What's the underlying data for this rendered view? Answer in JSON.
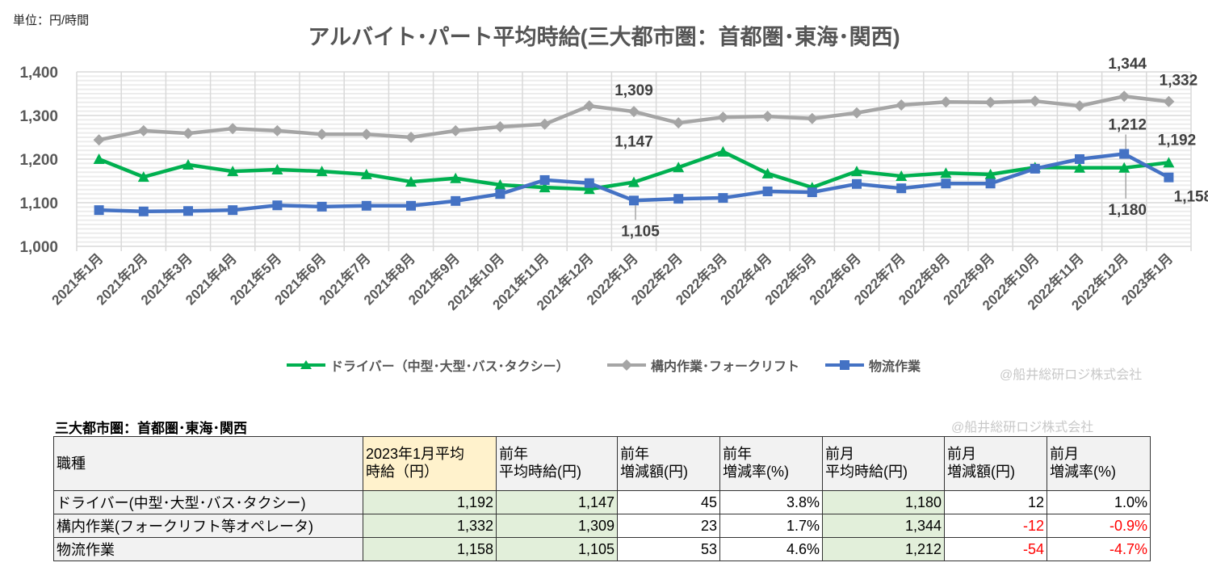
{
  "chart_data": {
    "type": "line",
    "title": "アルバイト･パート平均時給(三大都市圏：首都圏･東海･関西)",
    "unit_label": "単位：円/時間",
    "ylim": [
      1000,
      1400
    ],
    "yticks": [
      "1,000",
      "1,100",
      "1,200",
      "1,300",
      "1,400"
    ],
    "grid": true,
    "legend_position": "bottom",
    "categories": [
      "2021年1月",
      "2021年2月",
      "2021年3月",
      "2021年4月",
      "2021年5月",
      "2021年6月",
      "2021年7月",
      "2021年8月",
      "2021年9月",
      "2021年10月",
      "2021年11月",
      "2021年12月",
      "2022年1月",
      "2022年2月",
      "2022年3月",
      "2022年4月",
      "2022年5月",
      "2022年6月",
      "2022年7月",
      "2022年8月",
      "2022年9月",
      "2022年10月",
      "2022年11月",
      "2022年12月",
      "2023年1月"
    ],
    "series": [
      {
        "name": "ドライバー（中型･大型･バス･タクシー）",
        "color": "#00b050",
        "marker": "triangle",
        "values": [
          1200,
          1159,
          1187,
          1172,
          1176,
          1172,
          1165,
          1148,
          1156,
          1141,
          1135,
          1131,
          1147,
          1181,
          1217,
          1167,
          1135,
          1172,
          1161,
          1168,
          1165,
          1181,
          1180,
          1180,
          1192
        ],
        "labels": {
          "12": "1,147",
          "23": "1,180",
          "24": "1,192"
        }
      },
      {
        "name": "構内作業･フォークリフト",
        "color": "#a5a5a5",
        "marker": "diamond",
        "values": [
          1244,
          1265,
          1259,
          1270,
          1265,
          1257,
          1257,
          1250,
          1265,
          1274,
          1280,
          1322,
          1309,
          1283,
          1296,
          1298,
          1293,
          1306,
          1324,
          1331,
          1330,
          1333,
          1322,
          1344,
          1332
        ],
        "labels": {
          "12": "1,309",
          "23": "1,344",
          "24": "1,332"
        }
      },
      {
        "name": "物流作業",
        "color": "#4472c4",
        "marker": "square",
        "values": [
          1083,
          1080,
          1081,
          1083,
          1094,
          1091,
          1093,
          1093,
          1104,
          1120,
          1152,
          1145,
          1105,
          1109,
          1111,
          1126,
          1124,
          1143,
          1133,
          1144,
          1144,
          1178,
          1200,
          1212,
          1158
        ],
        "labels": {
          "12": "1,105",
          "23": "1,212",
          "24": "1,158"
        }
      }
    ]
  },
  "watermark": "@船井総研ロジ株式会社",
  "table": {
    "title": "三大都市圏：首都圏･東海･関西",
    "watermark": "@船井総研ロジ株式会社",
    "headers": [
      "職種",
      "2023年1月平均\n時給（円）",
      "前年\n平均時給(円)",
      "前年\n増減額(円)",
      "前年\n増減率(%)",
      "前月\n平均時給(円)",
      "前月\n増減額(円)",
      "前月\n増減率(%)"
    ],
    "rows": [
      [
        "ドライバー(中型･大型･バス･タクシー)",
        "1,192",
        "1,147",
        "45",
        "3.8%",
        "1,180",
        "12",
        "1.0%"
      ],
      [
        "構内作業(フォークリフト等オペレータ)",
        "1,332",
        "1,309",
        "23",
        "1.7%",
        "1,344",
        "-12",
        "-0.9%"
      ],
      [
        "物流作業",
        "1,158",
        "1,105",
        "53",
        "4.6%",
        "1,212",
        "-54",
        "-4.7%"
      ]
    ]
  }
}
